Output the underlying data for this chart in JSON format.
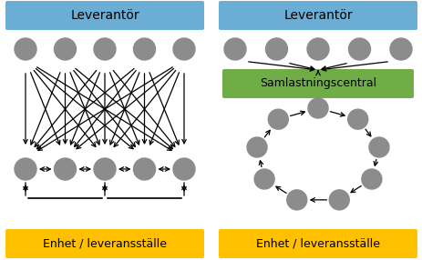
{
  "bg_color": "#ffffff",
  "blue_color": "#6AAED6",
  "yellow_color": "#FFC000",
  "green_color": "#70AD47",
  "gray_color": "#8C8C8C",
  "label_leverantor": "Leverantör",
  "label_enhet": "Enhet / leveransställe",
  "label_samlast": "Samlastningscentral",
  "figw": 4.64,
  "figh": 2.86,
  "dpi": 100
}
